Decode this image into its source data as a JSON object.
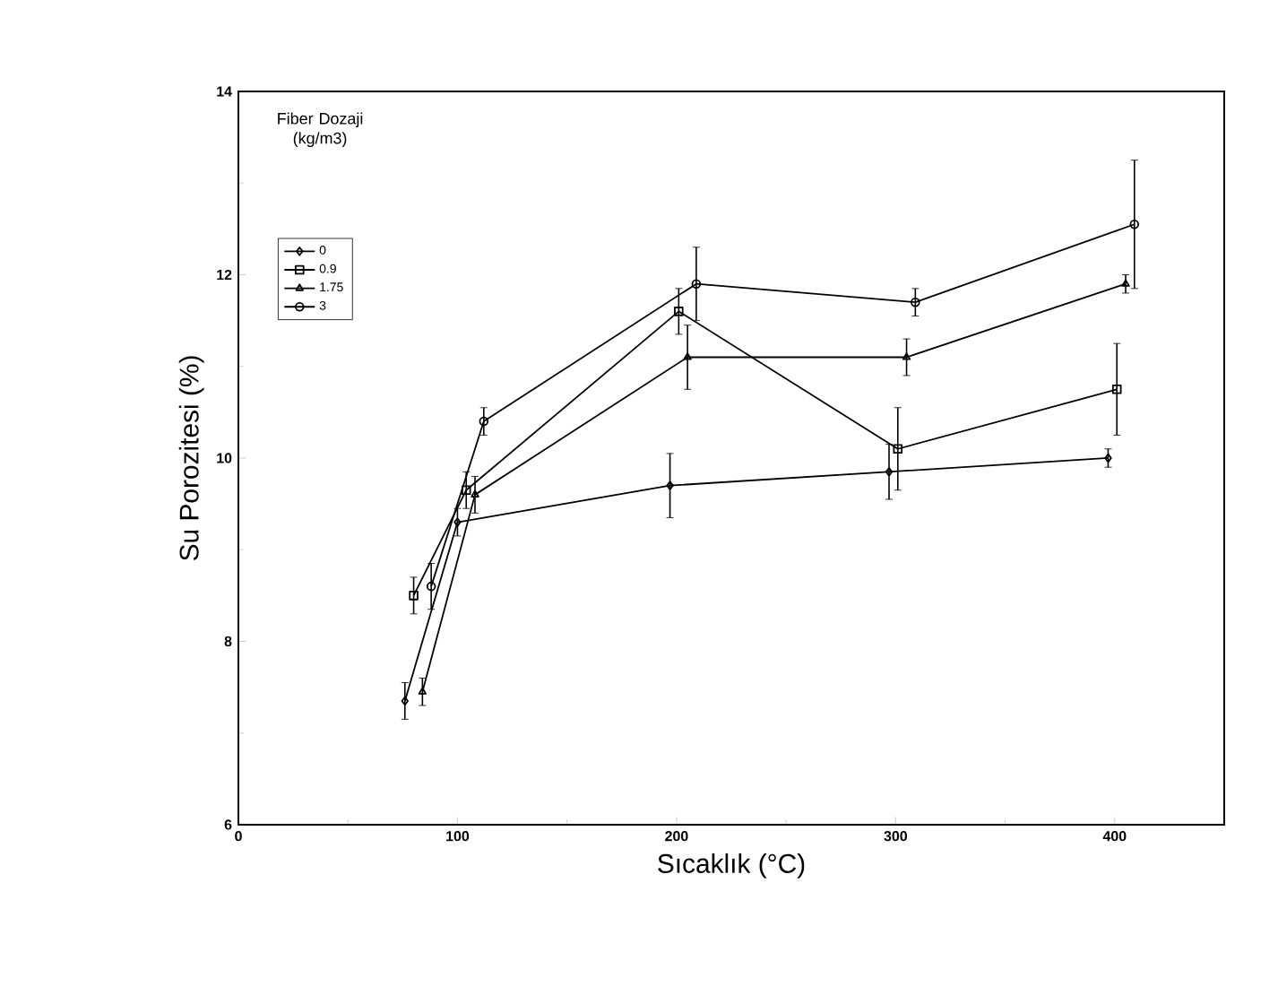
{
  "chart_data": {
    "type": "line",
    "xlabel": "Sıcaklık (°C)",
    "ylabel": "Su Porozitesi (%)",
    "legend_title": "Fiber Dozaji (kg/m3)",
    "legend": "top left",
    "grid": false,
    "xlim": [
      0,
      450
    ],
    "xticks": [
      0,
      100,
      200,
      300,
      400
    ],
    "ylim": [
      6,
      14
    ],
    "yticks": [
      6,
      8,
      10,
      12,
      14
    ],
    "series": [
      {
        "name": "0",
        "color": "#000000",
        "marker": "diamond",
        "x": [
          76,
          100,
          197,
          297,
          397
        ],
        "values": [
          7.35,
          9.3,
          9.7,
          9.85,
          10.0
        ],
        "errors": [
          0.2,
          0.15,
          0.35,
          0.3,
          0.1
        ]
      },
      {
        "name": "0.9",
        "color": "#000000",
        "marker": "square",
        "x": [
          80,
          104,
          201,
          301,
          401
        ],
        "values": [
          8.5,
          9.65,
          11.6,
          10.1,
          10.75
        ],
        "errors": [
          0.2,
          0.2,
          0.25,
          0.45,
          0.5
        ]
      },
      {
        "name": "1.75",
        "color": "#000000",
        "marker": "triangle",
        "x": [
          84,
          108,
          205,
          305,
          405
        ],
        "values": [
          7.45,
          9.6,
          11.1,
          11.1,
          11.9
        ],
        "errors": [
          0.15,
          0.2,
          0.35,
          0.2,
          0.1
        ]
      },
      {
        "name": "3",
        "color": "#000000",
        "marker": "circle",
        "x": [
          88,
          112,
          209,
          309,
          409
        ],
        "values": [
          8.6,
          10.4,
          11.9,
          11.7,
          12.55
        ],
        "errors": [
          0.25,
          0.15,
          0.4,
          0.15,
          0.7
        ]
      }
    ]
  }
}
